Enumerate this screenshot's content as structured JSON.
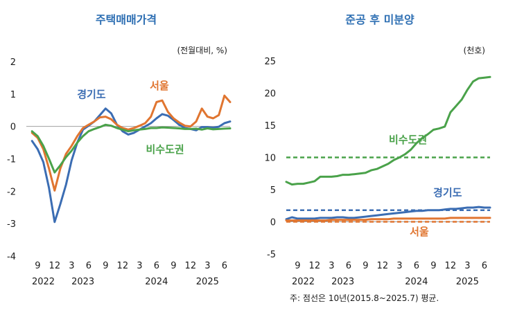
{
  "left": {
    "title": "주택매매가격",
    "unit": "(전월대비, %)",
    "chart_data": {
      "type": "line",
      "ylim": [
        -4,
        2
      ],
      "yticks": [
        2,
        1,
        0,
        -1,
        -2,
        -3,
        -4
      ],
      "xlim": [
        7,
        43
      ],
      "x_tick_labels": [
        "9",
        "12",
        "3",
        "6",
        "9",
        "12",
        "3",
        "6",
        "9",
        "12",
        "3",
        "6"
      ],
      "x_tick_positions": [
        9,
        12,
        15,
        18,
        21,
        24,
        27,
        30,
        33,
        36,
        39,
        42
      ],
      "year_labels": [
        {
          "label": "2022",
          "x": 10
        },
        {
          "label": "2023",
          "x": 17
        },
        {
          "label": "2024",
          "x": 30
        },
        {
          "label": "2025",
          "x": 39
        }
      ],
      "x_unit": "months since Jan 2022",
      "series": [
        {
          "name": "경기도",
          "color": "#3b6db3",
          "x": [
            8,
            9,
            10,
            11,
            12,
            13,
            14,
            15,
            16,
            17,
            18,
            19,
            20,
            21,
            22,
            23,
            24,
            25,
            26,
            27,
            28,
            29,
            30,
            31,
            32,
            33,
            34,
            35,
            36,
            37,
            38,
            39,
            40,
            41,
            42,
            43
          ],
          "y": [
            -0.45,
            -0.7,
            -1.1,
            -1.9,
            -2.95,
            -2.4,
            -1.8,
            -1.05,
            -0.5,
            -0.1,
            0.02,
            0.15,
            0.35,
            0.55,
            0.4,
            0.05,
            -0.15,
            -0.25,
            -0.2,
            -0.1,
            0.0,
            0.1,
            0.25,
            0.38,
            0.33,
            0.2,
            0.05,
            -0.05,
            -0.08,
            -0.12,
            -0.02,
            -0.02,
            -0.04,
            -0.01,
            0.1,
            0.15
          ]
        },
        {
          "name": "서울",
          "color": "#e07530",
          "x": [
            8,
            9,
            10,
            11,
            12,
            13,
            14,
            15,
            16,
            17,
            18,
            19,
            20,
            21,
            22,
            23,
            24,
            25,
            26,
            27,
            28,
            29,
            30,
            31,
            32,
            33,
            34,
            35,
            36,
            37,
            38,
            39,
            40,
            41,
            42,
            43
          ],
          "y": [
            -0.2,
            -0.35,
            -0.7,
            -1.3,
            -1.98,
            -1.3,
            -0.85,
            -0.6,
            -0.3,
            -0.05,
            0.05,
            0.15,
            0.28,
            0.3,
            0.22,
            0.05,
            -0.05,
            -0.1,
            -0.05,
            0.02,
            0.1,
            0.3,
            0.75,
            0.8,
            0.45,
            0.25,
            0.12,
            0.02,
            0.0,
            0.15,
            0.55,
            0.3,
            0.25,
            0.35,
            0.95,
            0.75
          ]
        },
        {
          "name": "비수도권",
          "color": "#4aa24a",
          "x": [
            8,
            9,
            10,
            11,
            12,
            13,
            14,
            15,
            16,
            17,
            18,
            19,
            20,
            21,
            22,
            23,
            24,
            25,
            26,
            27,
            28,
            29,
            30,
            31,
            32,
            33,
            34,
            35,
            36,
            37,
            38,
            39,
            40,
            41,
            42,
            43
          ],
          "y": [
            -0.15,
            -0.3,
            -0.6,
            -1.0,
            -1.42,
            -1.2,
            -0.95,
            -0.75,
            -0.5,
            -0.3,
            -0.15,
            -0.08,
            -0.02,
            0.05,
            0.02,
            -0.05,
            -0.1,
            -0.15,
            -0.12,
            -0.1,
            -0.08,
            -0.05,
            -0.05,
            -0.03,
            -0.04,
            -0.05,
            -0.06,
            -0.08,
            -0.08,
            -0.07,
            -0.1,
            -0.06,
            -0.09,
            -0.08,
            -0.07,
            -0.06
          ]
        }
      ],
      "annotations": [
        {
          "text": "경기도",
          "color": "#3b6db3",
          "x": 18.5,
          "y": 0.88
        },
        {
          "text": "서울",
          "color": "#e07530",
          "x": 30.5,
          "y": 1.15
        },
        {
          "text": "비수도권",
          "color": "#4aa24a",
          "x": 31.5,
          "y": -0.82
        }
      ]
    }
  },
  "right": {
    "title": "준공 후 미분양",
    "unit": "(천호)",
    "note": "주: 점선은 10년(2015.8~2025.7) 평균.",
    "chart_data": {
      "type": "line",
      "ylim": [
        -5,
        25
      ],
      "yticks": [
        25,
        20,
        15,
        10,
        5,
        0,
        -5
      ],
      "xlim": [
        7,
        43
      ],
      "x_tick_labels": [
        "9",
        "12",
        "3",
        "6",
        "9",
        "12",
        "3",
        "6",
        "9",
        "12",
        "3",
        "6"
      ],
      "x_tick_positions": [
        9,
        12,
        15,
        18,
        21,
        24,
        27,
        30,
        33,
        36,
        39,
        42
      ],
      "year_labels": [
        {
          "label": "2022",
          "x": 10
        },
        {
          "label": "2023",
          "x": 17
        },
        {
          "label": "2024",
          "x": 30
        },
        {
          "label": "2025",
          "x": 39
        }
      ],
      "x_unit": "months since Jan 2022",
      "series": [
        {
          "name": "비수도권",
          "color": "#4aa24a",
          "x": [
            7,
            8,
            9,
            10,
            11,
            12,
            13,
            14,
            15,
            16,
            17,
            18,
            19,
            20,
            21,
            22,
            23,
            24,
            25,
            26,
            27,
            28,
            29,
            30,
            31,
            32,
            33,
            34,
            35,
            36,
            37,
            38,
            39,
            40,
            41,
            42,
            43
          ],
          "y": [
            6.2,
            5.8,
            5.9,
            5.9,
            6.1,
            6.3,
            7.0,
            7.0,
            7.0,
            7.1,
            7.3,
            7.3,
            7.4,
            7.5,
            7.6,
            8.0,
            8.2,
            8.6,
            9.0,
            9.6,
            10.0,
            10.5,
            11.2,
            12.2,
            13.0,
            13.6,
            14.3,
            14.5,
            14.8,
            17.0,
            18.0,
            19.0,
            20.5,
            21.8,
            22.3,
            22.4,
            22.5
          ]
        },
        {
          "name": "경기도",
          "color": "#3b6db3",
          "x": [
            7,
            8,
            9,
            10,
            11,
            12,
            13,
            14,
            15,
            16,
            17,
            18,
            19,
            20,
            21,
            22,
            23,
            24,
            25,
            26,
            27,
            28,
            29,
            30,
            31,
            32,
            33,
            34,
            35,
            36,
            37,
            38,
            39,
            40,
            41,
            42,
            43
          ],
          "y": [
            0.4,
            0.7,
            0.5,
            0.5,
            0.5,
            0.5,
            0.6,
            0.6,
            0.6,
            0.7,
            0.7,
            0.6,
            0.6,
            0.7,
            0.8,
            0.9,
            1.0,
            1.1,
            1.2,
            1.3,
            1.4,
            1.5,
            1.6,
            1.7,
            1.7,
            1.8,
            1.8,
            1.8,
            1.9,
            2.0,
            2.0,
            2.1,
            2.2,
            2.2,
            2.3,
            2.2,
            2.2
          ]
        },
        {
          "name": "서울",
          "color": "#e07530",
          "x": [
            7,
            8,
            9,
            10,
            11,
            12,
            13,
            14,
            15,
            16,
            17,
            18,
            19,
            20,
            21,
            22,
            23,
            24,
            25,
            26,
            27,
            28,
            29,
            30,
            31,
            32,
            33,
            34,
            35,
            36,
            37,
            38,
            39,
            40,
            41,
            42,
            43
          ],
          "y": [
            0.2,
            0.2,
            0.2,
            0.2,
            0.2,
            0.2,
            0.2,
            0.2,
            0.3,
            0.3,
            0.3,
            0.3,
            0.3,
            0.3,
            0.3,
            0.4,
            0.4,
            0.4,
            0.4,
            0.5,
            0.5,
            0.5,
            0.5,
            0.5,
            0.5,
            0.5,
            0.5,
            0.5,
            0.5,
            0.6,
            0.6,
            0.6,
            0.6,
            0.6,
            0.6,
            0.6,
            0.6
          ]
        }
      ],
      "averages": [
        {
          "series": "비수도권",
          "color": "#4aa24a",
          "value": 10.0
        },
        {
          "series": "경기도",
          "color": "#3b6db3",
          "value": 1.8
        },
        {
          "series": "서울",
          "color": "#e07530",
          "value": 0.0
        }
      ],
      "annotations": [
        {
          "text": "비수도권",
          "color": "#4aa24a",
          "x": 28.5,
          "y": 12.2
        },
        {
          "text": "경기도",
          "color": "#3b6db3",
          "x": 35.5,
          "y": 4.0
        },
        {
          "text": "서울",
          "color": "#e07530",
          "x": 30.5,
          "y": -2.1
        }
      ]
    }
  }
}
